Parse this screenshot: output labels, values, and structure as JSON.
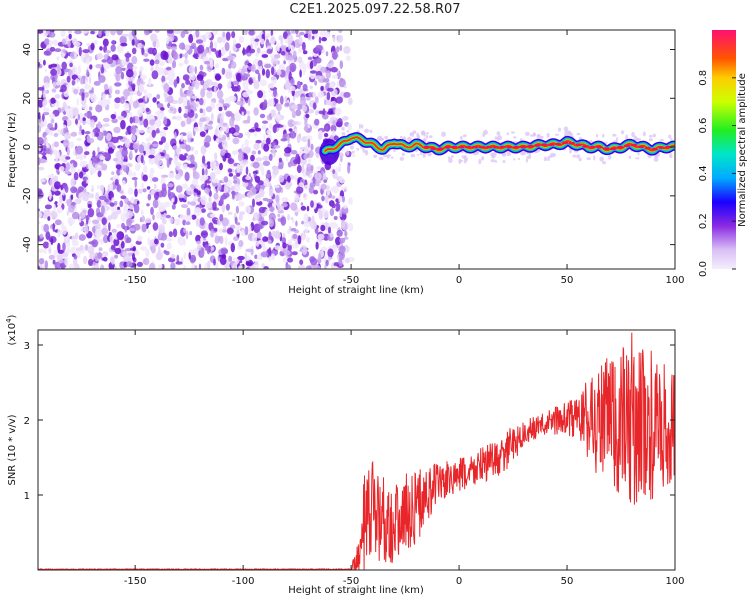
{
  "title": "C2E1.2025.097.22.58.R07",
  "chart_data": [
    {
      "type": "heatmap",
      "xlabel": "Height of straight line (km)",
      "ylabel": "Frequency (Hz)",
      "xlim": [
        -195,
        100
      ],
      "ylim": [
        -50,
        48
      ],
      "x_ticks": [
        -150,
        -100,
        -50,
        0,
        50,
        100
      ],
      "y_ticks": [
        -40,
        -20,
        0,
        20,
        40
      ],
      "noise_region_x": [
        -195,
        -55
      ],
      "signal_trace": {
        "x": [
          -62,
          -55,
          -50,
          -45,
          -40,
          -35,
          -30,
          -25,
          -20,
          -15,
          -10,
          -5,
          0,
          10,
          20,
          30,
          40,
          45,
          50,
          55,
          60,
          65,
          70,
          75,
          80,
          85,
          90,
          95,
          100
        ],
        "y": [
          -2,
          1,
          4,
          3,
          1,
          -1,
          2,
          0,
          1,
          0,
          -1,
          0,
          0,
          0,
          0,
          0,
          1,
          1,
          2,
          1,
          0,
          0,
          -1,
          0,
          1,
          0,
          -1,
          0,
          0
        ]
      },
      "colorbar": {
        "label": "Normalized spectral amplitude",
        "range": [
          0,
          1
        ],
        "ticks": [
          0.0,
          0.2,
          0.4,
          0.6,
          0.8
        ]
      }
    },
    {
      "type": "line",
      "xlabel": "Height of straight line (km)",
      "ylabel": "SNR (10 * v/v)",
      "y_multiplier": "(x10",
      "y_multiplier_exp": "4",
      "y_multiplier_close": ")",
      "xlim": [
        -195,
        100
      ],
      "ylim": [
        0,
        3.2
      ],
      "x_ticks": [
        -150,
        -100,
        -50,
        0,
        50,
        100
      ],
      "y_ticks": [
        1,
        2,
        3
      ],
      "color": "#e8262a",
      "envelope": {
        "x": [
          -195,
          -50,
          -46,
          -44,
          -40,
          -35,
          -30,
          -25,
          -20,
          -15,
          -10,
          -5,
          0,
          5,
          10,
          15,
          20,
          25,
          30,
          35,
          40,
          45,
          50,
          55,
          60,
          65,
          70,
          75,
          80,
          85,
          90,
          95,
          100
        ],
        "mean": [
          0.0,
          0.01,
          0.2,
          0.45,
          0.8,
          0.7,
          0.6,
          0.75,
          0.85,
          1.0,
          1.15,
          1.2,
          1.25,
          1.3,
          1.4,
          1.45,
          1.5,
          1.7,
          1.8,
          1.9,
          1.95,
          2.0,
          2.0,
          2.05,
          2.0,
          2.0,
          1.95,
          1.9,
          2.0,
          1.95,
          1.9,
          1.85,
          1.9
        ],
        "spread": [
          0.0,
          0.02,
          0.3,
          0.8,
          0.7,
          0.6,
          0.55,
          0.55,
          0.5,
          0.4,
          0.3,
          0.25,
          0.25,
          0.25,
          0.25,
          0.25,
          0.25,
          0.25,
          0.2,
          0.15,
          0.15,
          0.2,
          0.25,
          0.3,
          0.6,
          0.8,
          1.0,
          1.1,
          1.2,
          1.1,
          1.0,
          0.9,
          0.8
        ]
      }
    }
  ]
}
